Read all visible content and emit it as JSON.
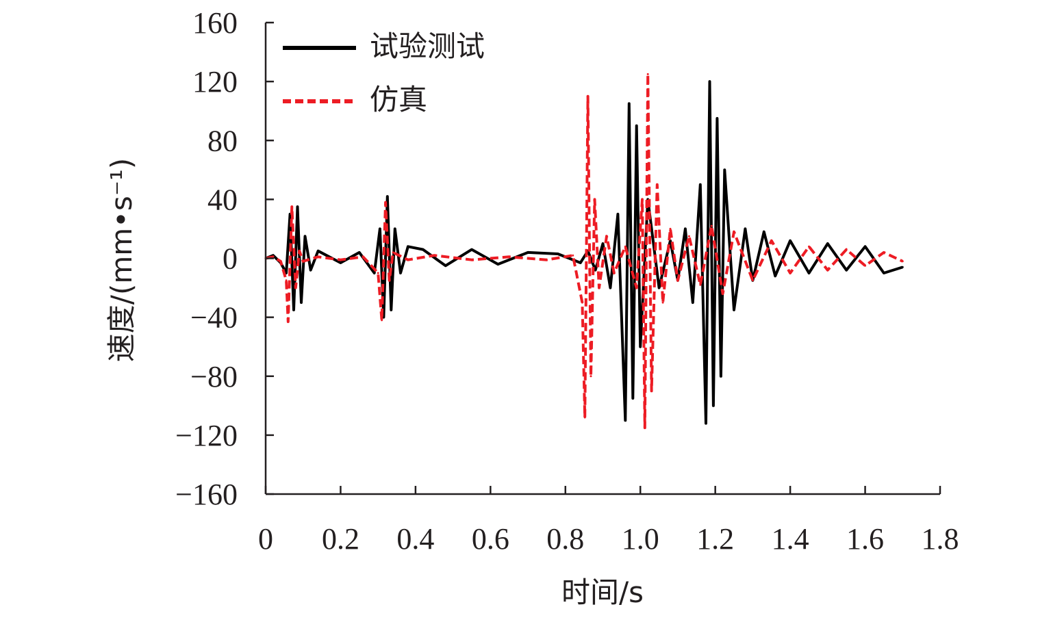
{
  "chart_data": {
    "type": "line",
    "xlabel": "时间/s",
    "ylabel": "速度/(mm•s⁻¹)",
    "xlim": [
      0,
      1.8
    ],
    "ylim": [
      -160,
      160
    ],
    "x_ticks": [
      "0",
      "0.2",
      "0.4",
      "0.6",
      "0.8",
      "1.0",
      "1.2",
      "1.4",
      "1.6",
      "1.8"
    ],
    "y_ticks": [
      "160",
      "120",
      "80",
      "40",
      "0",
      "−40",
      "−80",
      "−120",
      "−160"
    ],
    "legend_position": "top-left",
    "grid": false,
    "series": [
      {
        "name": "试验测试",
        "color": "#000000",
        "style": "solid",
        "x": [
          0,
          0.02,
          0.04,
          0.055,
          0.065,
          0.075,
          0.085,
          0.095,
          0.105,
          0.12,
          0.14,
          0.2,
          0.25,
          0.29,
          0.305,
          0.315,
          0.325,
          0.335,
          0.345,
          0.36,
          0.38,
          0.42,
          0.48,
          0.55,
          0.62,
          0.7,
          0.78,
          0.84,
          0.86,
          0.88,
          0.9,
          0.92,
          0.94,
          0.96,
          0.97,
          0.98,
          0.99,
          1.0,
          1.02,
          1.05,
          1.08,
          1.1,
          1.12,
          1.14,
          1.16,
          1.175,
          1.185,
          1.195,
          1.205,
          1.215,
          1.225,
          1.25,
          1.28,
          1.3,
          1.33,
          1.36,
          1.4,
          1.45,
          1.5,
          1.55,
          1.6,
          1.65,
          1.7
        ],
        "y": [
          0,
          2,
          -3,
          -10,
          30,
          -35,
          35,
          -30,
          15,
          -8,
          5,
          -3,
          4,
          -10,
          20,
          -40,
          42,
          -35,
          20,
          -10,
          8,
          6,
          -5,
          6,
          -4,
          4,
          3,
          -3,
          5,
          -8,
          10,
          -20,
          30,
          -110,
          105,
          -95,
          90,
          -60,
          40,
          -20,
          12,
          -15,
          20,
          -30,
          50,
          -112,
          120,
          -100,
          95,
          -80,
          60,
          -35,
          20,
          -15,
          18,
          -12,
          12,
          -10,
          10,
          -8,
          8,
          -10,
          -6
        ]
      },
      {
        "name": "仿真",
        "color": "#ed1c24",
        "style": "dashed",
        "x": [
          0,
          0.02,
          0.04,
          0.055,
          0.06,
          0.07,
          0.08,
          0.09,
          0.1,
          0.14,
          0.2,
          0.26,
          0.3,
          0.31,
          0.32,
          0.33,
          0.34,
          0.38,
          0.45,
          0.55,
          0.65,
          0.75,
          0.82,
          0.845,
          0.852,
          0.86,
          0.868,
          0.878,
          0.89,
          0.91,
          0.93,
          0.96,
          0.99,
          1.005,
          1.012,
          1.02,
          1.03,
          1.045,
          1.06,
          1.08,
          1.1,
          1.13,
          1.16,
          1.19,
          1.22,
          1.25,
          1.3,
          1.35,
          1.4,
          1.45,
          1.5,
          1.55,
          1.6,
          1.65,
          1.7
        ],
        "y": [
          0,
          1,
          -2,
          -15,
          -43,
          35,
          -20,
          5,
          -2,
          1,
          -1,
          1,
          -10,
          -42,
          38,
          -15,
          4,
          -1,
          2,
          -1,
          1,
          -1,
          2,
          -30,
          -108,
          110,
          -80,
          40,
          -20,
          15,
          -10,
          8,
          -20,
          40,
          -115,
          125,
          -90,
          50,
          -30,
          20,
          -15,
          15,
          -18,
          22,
          -24,
          18,
          -15,
          12,
          -10,
          8,
          -8,
          6,
          -5,
          4,
          -2
        ]
      }
    ]
  }
}
